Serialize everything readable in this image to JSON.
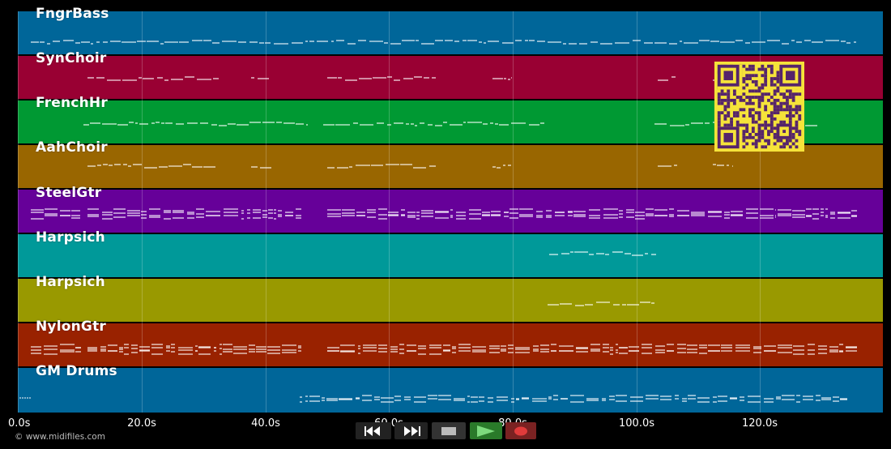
{
  "tracks": [
    {
      "name": "FngrBass",
      "color": "#006699"
    },
    {
      "name": "SynChoir",
      "color": "#990033"
    },
    {
      "name": "FrenchHr",
      "color": "#009933"
    },
    {
      "name": "AahChoir",
      "color": "#996600"
    },
    {
      "name": "SteelGtr",
      "color": "#660099"
    },
    {
      "name": "Harpsich",
      "color": "#009999"
    },
    {
      "name": "Harpsich",
      "color": "#999900"
    },
    {
      "name": "NylonGtr",
      "color": "#992200"
    },
    {
      "name": "GM Drums",
      "color": "#006699"
    }
  ],
  "timeline": {
    "ticks": [
      "0.0s",
      "20.0s",
      "40.0s",
      "60.0s",
      "80.0s",
      "100.0s",
      "120.0s"
    ]
  },
  "footer": {
    "copyright": "© www.midifiles.com"
  },
  "transport": {
    "rewind_icon": "rewind-icon",
    "forward_icon": "fast-forward-icon",
    "stop_icon": "stop-icon",
    "play_icon": "play-icon",
    "record_icon": "record-icon"
  },
  "qr": {
    "icon": "qr-code-icon",
    "fg": "#55246b",
    "bg": "#f5e33a"
  }
}
